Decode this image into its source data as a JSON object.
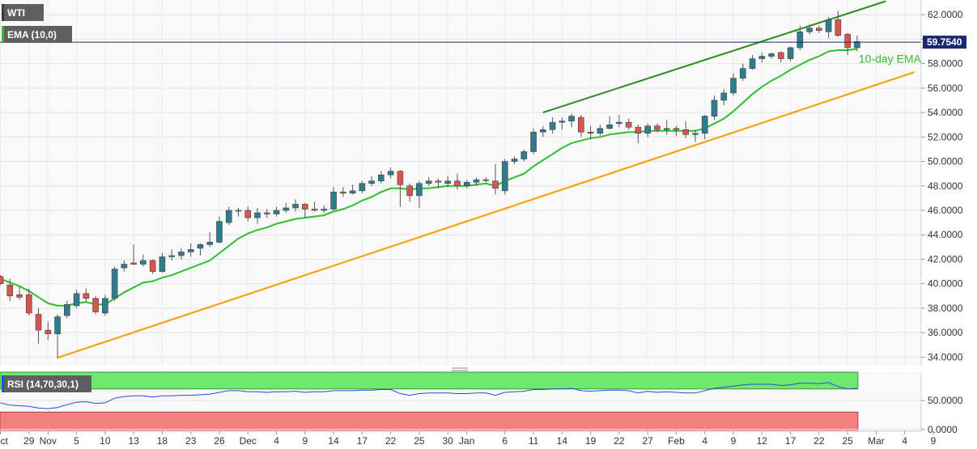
{
  "chart_data": {
    "type": "candlestick",
    "symbol": "WTI",
    "indicator_label": "EMA (10,0)",
    "current_price": "59.7540",
    "annotation": "10-day EMA",
    "ylim": [
      33.3,
      63.2
    ],
    "y_ticks": [
      "34.0000",
      "36.0000",
      "38.0000",
      "40.0000",
      "42.0000",
      "44.0000",
      "46.0000",
      "48.0000",
      "50.0000",
      "52.0000",
      "54.0000",
      "56.0000",
      "58.0000",
      "60.0000",
      "62.0000"
    ],
    "x_ticks": [
      {
        "label": "Oct",
        "i": 0
      },
      {
        "label": "29",
        "i": 3
      },
      {
        "label": "Nov",
        "i": 5
      },
      {
        "label": "5",
        "i": 8
      },
      {
        "label": "10",
        "i": 11
      },
      {
        "label": "13",
        "i": 14
      },
      {
        "label": "18",
        "i": 17
      },
      {
        "label": "23",
        "i": 20
      },
      {
        "label": "26",
        "i": 23
      },
      {
        "label": "Dec",
        "i": 26
      },
      {
        "label": "4",
        "i": 29
      },
      {
        "label": "9",
        "i": 32
      },
      {
        "label": "14",
        "i": 35
      },
      {
        "label": "17",
        "i": 38
      },
      {
        "label": "22",
        "i": 41
      },
      {
        "label": "25",
        "i": 44
      },
      {
        "label": "30",
        "i": 47
      },
      {
        "label": "Jan",
        "i": 49
      },
      {
        "label": "6",
        "i": 53
      },
      {
        "label": "11",
        "i": 56
      },
      {
        "label": "14",
        "i": 59
      },
      {
        "label": "19",
        "i": 62
      },
      {
        "label": "22",
        "i": 65
      },
      {
        "label": "27",
        "i": 68
      },
      {
        "label": "Feb",
        "i": 71
      },
      {
        "label": "4",
        "i": 74
      },
      {
        "label": "9",
        "i": 77
      },
      {
        "label": "12",
        "i": 80
      },
      {
        "label": "17",
        "i": 83
      },
      {
        "label": "22",
        "i": 86
      },
      {
        "label": "25",
        "i": 89
      },
      {
        "label": "Mar",
        "i": 92
      },
      {
        "label": "4",
        "i": 95
      },
      {
        "label": "9",
        "i": 98
      }
    ],
    "candles": [
      [
        40.6,
        40.7,
        39.9,
        40.0
      ],
      [
        39.9,
        40.4,
        38.6,
        39.0
      ],
      [
        39.1,
        39.8,
        38.7,
        38.9
      ],
      [
        39.1,
        39.6,
        37.4,
        37.6
      ],
      [
        37.5,
        38.0,
        35.1,
        36.2
      ],
      [
        36.2,
        36.9,
        35.4,
        35.9
      ],
      [
        35.9,
        37.5,
        33.9,
        37.3
      ],
      [
        37.4,
        38.6,
        37.2,
        38.3
      ],
      [
        38.2,
        39.5,
        38.0,
        39.2
      ],
      [
        39.2,
        39.6,
        38.5,
        38.8
      ],
      [
        38.8,
        39.0,
        37.5,
        37.7
      ],
      [
        37.6,
        39.1,
        37.4,
        38.8
      ],
      [
        38.8,
        41.4,
        38.6,
        41.2
      ],
      [
        41.3,
        41.9,
        41.0,
        41.6
      ],
      [
        41.7,
        43.2,
        41.5,
        41.6
      ],
      [
        41.6,
        42.4,
        41.4,
        41.9
      ],
      [
        41.9,
        42.0,
        40.8,
        41.0
      ],
      [
        41.0,
        42.5,
        40.9,
        42.2
      ],
      [
        42.2,
        42.8,
        41.9,
        42.3
      ],
      [
        42.3,
        42.9,
        42.0,
        42.6
      ],
      [
        42.6,
        43.3,
        42.2,
        42.8
      ],
      [
        42.9,
        43.3,
        42.3,
        43.2
      ],
      [
        43.2,
        44.2,
        43.0,
        43.4
      ],
      [
        43.4,
        45.5,
        43.3,
        45.1
      ],
      [
        45.0,
        46.3,
        44.8,
        46.0
      ],
      [
        46.0,
        46.2,
        45.5,
        46.0
      ],
      [
        46.0,
        46.3,
        45.1,
        45.4
      ],
      [
        45.4,
        46.2,
        44.9,
        45.8
      ],
      [
        45.8,
        46.1,
        45.4,
        45.7
      ],
      [
        45.7,
        46.3,
        45.5,
        46.0
      ],
      [
        46.0,
        46.6,
        45.8,
        46.2
      ],
      [
        46.2,
        46.9,
        45.9,
        46.5
      ],
      [
        46.5,
        46.6,
        45.4,
        46.1
      ],
      [
        46.1,
        46.7,
        45.9,
        46.0
      ],
      [
        46.0,
        46.4,
        45.8,
        46.1
      ],
      [
        46.1,
        47.9,
        46.0,
        47.5
      ],
      [
        47.5,
        47.9,
        47.1,
        47.4
      ],
      [
        47.4,
        48.1,
        47.3,
        47.6
      ],
      [
        47.6,
        48.4,
        47.4,
        48.2
      ],
      [
        48.2,
        48.8,
        48.0,
        48.4
      ],
      [
        48.4,
        49.2,
        48.2,
        48.9
      ],
      [
        48.9,
        49.5,
        48.6,
        49.2
      ],
      [
        49.2,
        49.3,
        46.3,
        48.1
      ],
      [
        48.0,
        48.2,
        46.7,
        47.2
      ],
      [
        47.2,
        48.4,
        46.2,
        48.2
      ],
      [
        48.2,
        48.7,
        48.0,
        48.4
      ],
      [
        48.4,
        48.6,
        47.8,
        48.3
      ],
      [
        48.2,
        48.8,
        47.9,
        48.4
      ],
      [
        48.4,
        49.0,
        47.7,
        48.0
      ],
      [
        48.0,
        48.5,
        47.8,
        48.3
      ],
      [
        48.3,
        48.7,
        48.0,
        48.5
      ],
      [
        48.5,
        48.7,
        48.3,
        48.5
      ],
      [
        48.4,
        49.8,
        47.3,
        47.8
      ],
      [
        47.6,
        50.2,
        47.3,
        50.0
      ],
      [
        50.0,
        50.4,
        49.8,
        50.2
      ],
      [
        50.2,
        51.0,
        50.0,
        50.8
      ],
      [
        50.8,
        52.7,
        50.6,
        52.4
      ],
      [
        52.4,
        52.9,
        52.0,
        52.6
      ],
      [
        52.6,
        53.6,
        52.3,
        53.2
      ],
      [
        53.2,
        53.6,
        52.6,
        53.3
      ],
      [
        53.3,
        53.9,
        52.8,
        53.7
      ],
      [
        53.6,
        53.8,
        52.0,
        52.4
      ],
      [
        52.4,
        52.9,
        51.8,
        52.3
      ],
      [
        52.3,
        53.0,
        52.1,
        52.7
      ],
      [
        52.7,
        53.7,
        52.6,
        53.0
      ],
      [
        53.1,
        53.8,
        52.8,
        53.2
      ],
      [
        53.2,
        53.5,
        52.6,
        52.8
      ],
      [
        52.8,
        53.0,
        51.5,
        52.3
      ],
      [
        52.3,
        53.1,
        52.0,
        52.9
      ],
      [
        52.9,
        53.1,
        52.4,
        52.6
      ],
      [
        52.6,
        53.4,
        52.2,
        52.7
      ],
      [
        52.7,
        52.9,
        52.1,
        52.6
      ],
      [
        52.6,
        53.3,
        51.9,
        52.2
      ],
      [
        52.2,
        52.6,
        51.6,
        52.3
      ],
      [
        52.3,
        53.8,
        51.8,
        53.7
      ],
      [
        53.7,
        55.4,
        53.4,
        55.0
      ],
      [
        55.0,
        55.9,
        54.6,
        55.6
      ],
      [
        55.6,
        57.2,
        55.4,
        56.8
      ],
      [
        56.8,
        58.0,
        56.6,
        57.6
      ],
      [
        57.6,
        58.7,
        57.5,
        58.4
      ],
      [
        58.4,
        58.9,
        58.1,
        58.6
      ],
      [
        58.6,
        58.9,
        58.4,
        58.8
      ],
      [
        58.9,
        59.0,
        58.1,
        58.4
      ],
      [
        58.4,
        59.4,
        58.2,
        59.3
      ],
      [
        59.3,
        61.1,
        59.1,
        60.6
      ],
      [
        60.6,
        61.2,
        60.4,
        60.9
      ],
      [
        60.9,
        61.1,
        60.5,
        60.7
      ],
      [
        60.6,
        61.8,
        60.1,
        61.6
      ],
      [
        61.6,
        62.3,
        60.2,
        60.3
      ],
      [
        60.4,
        60.5,
        58.7,
        59.3
      ],
      [
        59.3,
        60.3,
        59.0,
        59.8
      ]
    ],
    "ema": [
      40.4,
      40.1,
      39.8,
      39.4,
      38.9,
      38.4,
      38.2,
      38.2,
      38.4,
      38.5,
      38.3,
      38.3,
      38.8,
      39.3,
      39.7,
      40.1,
      40.2,
      40.5,
      40.7,
      41.0,
      41.3,
      41.6,
      41.9,
      42.5,
      43.1,
      43.7,
      44.1,
      44.4,
      44.6,
      44.9,
      45.1,
      45.3,
      45.4,
      45.5,
      45.6,
      45.9,
      46.1,
      46.4,
      46.8,
      47.1,
      47.5,
      47.8,
      47.8,
      47.7,
      47.8,
      47.8,
      47.9,
      48.0,
      48.0,
      48.0,
      48.1,
      48.2,
      48.0,
      48.4,
      48.7,
      49.0,
      49.6,
      50.1,
      50.6,
      51.1,
      51.5,
      51.7,
      51.9,
      52.0,
      52.2,
      52.3,
      52.4,
      52.4,
      52.5,
      52.5,
      52.5,
      52.5,
      52.5,
      52.5,
      52.7,
      53.1,
      53.5,
      54.1,
      54.8,
      55.5,
      56.1,
      56.6,
      57.0,
      57.5,
      57.9,
      58.3,
      58.6,
      59.0,
      59.1,
      59.1,
      59.2
    ],
    "trendlines": [
      {
        "color": "#ff9900",
        "from": [
          6,
          33.95
        ],
        "to": [
          96,
          57.3
        ]
      },
      {
        "color": "#2e8b22",
        "from": [
          57,
          54.0
        ],
        "to": [
          93,
          63.1
        ]
      }
    ],
    "rsi": {
      "label": "RSI (14,70,30,1)",
      "ylim": [
        -3,
        99
      ],
      "y_ticks": [
        "0.0000",
        "50.0000"
      ],
      "upper": 70,
      "lower": 30,
      "values": [
        46,
        42,
        41,
        40,
        37,
        36,
        38,
        43,
        47,
        48,
        45,
        46,
        54,
        57,
        58,
        58,
        56,
        58,
        58,
        59,
        59,
        60,
        61,
        64,
        67,
        67,
        65,
        65,
        64,
        65,
        65,
        66,
        64,
        65,
        65,
        67,
        67,
        67,
        68,
        68,
        69,
        69,
        62,
        59,
        62,
        63,
        63,
        63,
        62,
        62,
        63,
        63,
        59,
        64,
        65,
        66,
        69,
        69,
        70,
        70,
        71,
        67,
        66,
        67,
        68,
        68,
        67,
        63,
        66,
        64,
        65,
        64,
        63,
        63,
        67,
        71,
        73,
        75,
        77,
        78,
        78,
        78,
        76,
        77,
        80,
        80,
        79,
        81,
        74,
        70,
        71
      ]
    }
  }
}
